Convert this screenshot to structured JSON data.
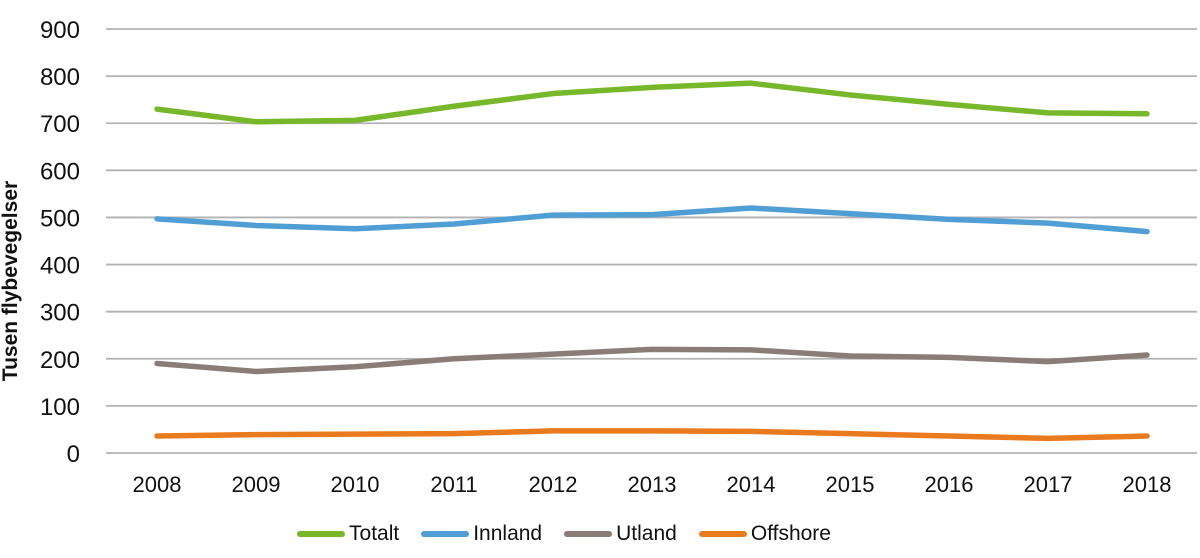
{
  "chart_data": {
    "type": "line",
    "title": "",
    "xlabel": "",
    "ylabel": "Tusen flybevegelser",
    "x": [
      "2008",
      "2009",
      "2010",
      "2011",
      "2012",
      "2013",
      "2014",
      "2015",
      "2016",
      "2017",
      "2018"
    ],
    "ylim": [
      0,
      900
    ],
    "ytick_step": 100,
    "y_tick_labels_top_to_bottom": [
      "900",
      "800",
      "700",
      "600",
      "500",
      "400",
      "300",
      "200",
      "100",
      "0"
    ],
    "grid": "horizontal",
    "legend_position": "bottom",
    "series": [
      {
        "name": "Totalt",
        "color": "#76b82a",
        "values": [
          730,
          703,
          706,
          736,
          763,
          776,
          785,
          760,
          740,
          722,
          720
        ]
      },
      {
        "name": "Innland",
        "color": "#4f9fd5",
        "values": [
          497,
          483,
          476,
          486,
          505,
          506,
          520,
          508,
          496,
          488,
          470
        ]
      },
      {
        "name": "Utland",
        "color": "#8a7d77",
        "values": [
          190,
          173,
          183,
          200,
          210,
          220,
          219,
          206,
          203,
          194,
          208
        ]
      },
      {
        "name": "Offshore",
        "color": "#ea7a1e",
        "values": [
          36,
          39,
          40,
          41,
          47,
          47,
          46,
          41,
          36,
          31,
          36
        ]
      }
    ]
  },
  "colors": {
    "background": "#ffffff",
    "gridline": "#b2b2b2",
    "text": "#111111"
  }
}
